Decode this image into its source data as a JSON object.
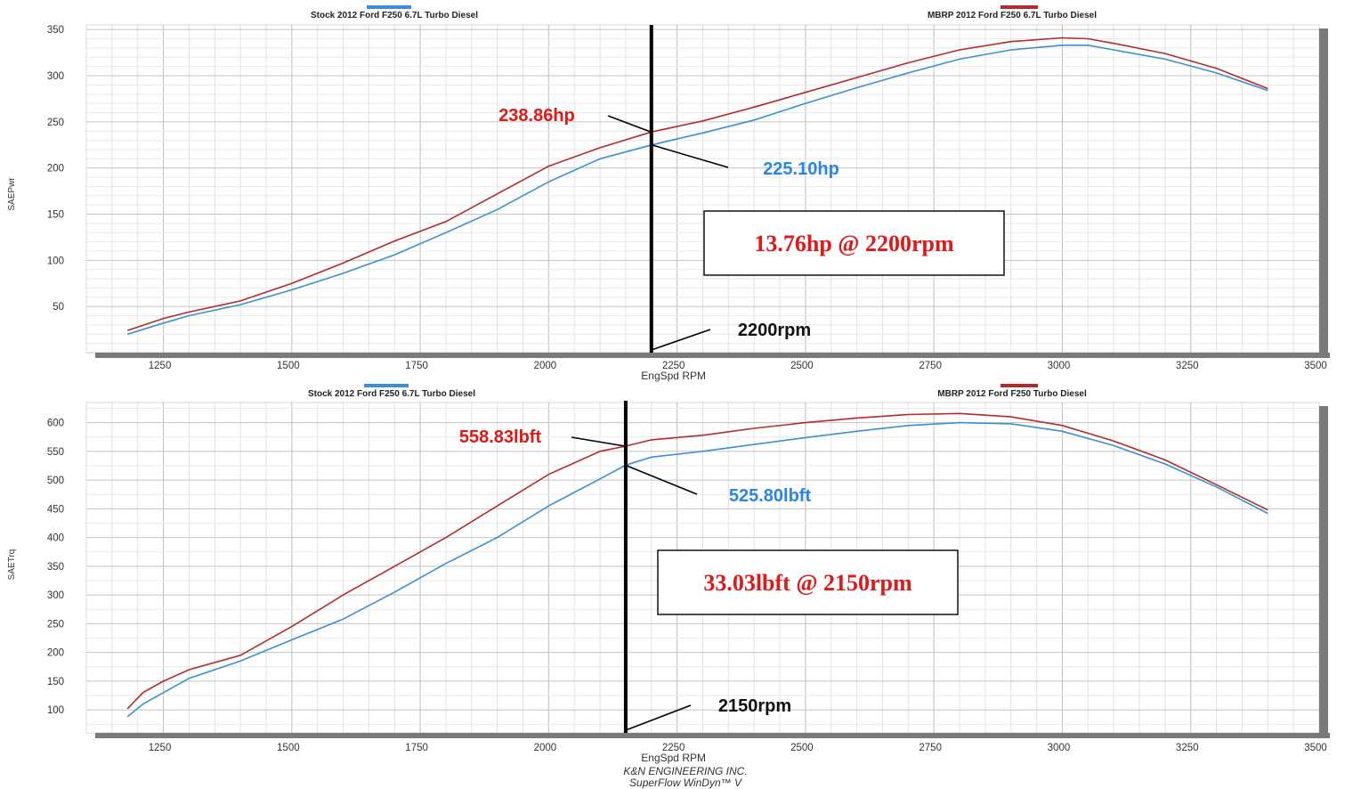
{
  "footer": {
    "line1": "K&N ENGINEERING INC.",
    "line2": "SuperFlow WinDyn™ V"
  },
  "colors": {
    "stock": "#3a8fd8",
    "mbrp": "#b52a2a",
    "grid": "#cfcfcf",
    "frame": "#8a8a8a",
    "annotation_red": "#e01818",
    "annotation_blue": "#2b86e0"
  },
  "chart_data": [
    {
      "type": "line",
      "legend": [
        "Stock 2012 Ford F250 6.7L Turbo Diesel",
        "MBRP 2012 Ford F250 6.7L Turbo Diesel"
      ],
      "xlabel": "EngSpd RPM",
      "ylabel": "SAEPwr",
      "xlim": [
        1100,
        3500
      ],
      "ylim": [
        0,
        355
      ],
      "x_ticks": [
        1250,
        1500,
        1750,
        2000,
        2250,
        2500,
        2750,
        3000,
        3250,
        3500
      ],
      "y_ticks": [
        50,
        100,
        150,
        200,
        250,
        300,
        350
      ],
      "grid": true,
      "series": [
        {
          "name": "Stock 2012 Ford F250 6.7L Turbo Diesel",
          "color": "#3a8fd8",
          "x": [
            1180,
            1250,
            1300,
            1400,
            1500,
            1600,
            1700,
            1800,
            1900,
            2000,
            2100,
            2200,
            2300,
            2400,
            2500,
            2600,
            2700,
            2800,
            2900,
            3000,
            3050,
            3100,
            3200,
            3300,
            3400
          ],
          "y": [
            20,
            32,
            40,
            52,
            68,
            86,
            106,
            130,
            155,
            185,
            210,
            225,
            238,
            252,
            270,
            287,
            303,
            318,
            328,
            333,
            333,
            328,
            318,
            303,
            284
          ]
        },
        {
          "name": "MBRP 2012 Ford F250 6.7L Turbo Diesel",
          "color": "#b52a2a",
          "x": [
            1180,
            1250,
            1300,
            1400,
            1500,
            1600,
            1700,
            1800,
            1900,
            2000,
            2100,
            2200,
            2300,
            2400,
            2500,
            2600,
            2700,
            2800,
            2900,
            3000,
            3050,
            3100,
            3200,
            3300,
            3400
          ],
          "y": [
            24,
            37,
            44,
            56,
            75,
            97,
            121,
            142,
            172,
            202,
            222,
            239,
            251,
            266,
            282,
            298,
            314,
            328,
            337,
            341,
            340,
            335,
            324,
            308,
            286
          ]
        }
      ],
      "annotations": {
        "high_label": "238.86hp",
        "low_label": "225.10hp",
        "box_label": "13.76hp @ 2200rpm",
        "rpm_label": "2200rpm",
        "marker_rpm": 2200,
        "high_value": 238.86,
        "low_value": 225.1
      }
    },
    {
      "type": "line",
      "legend": [
        "Stock 2012 Ford F250 6.7L Turbo Diesel",
        "MBRP 2012 Ford F250 Turbo Diesel"
      ],
      "xlabel": "EngSpd RPM",
      "ylabel": "SAETrq",
      "xlim": [
        1100,
        3500
      ],
      "ylim": [
        60,
        635
      ],
      "x_ticks": [
        1250,
        1500,
        1750,
        2000,
        2250,
        2500,
        2750,
        3000,
        3250,
        3500
      ],
      "y_ticks": [
        100,
        150,
        200,
        250,
        300,
        350,
        400,
        450,
        500,
        550,
        600
      ],
      "grid": true,
      "series": [
        {
          "name": "Stock 2012 Ford F250 6.7L Turbo Diesel",
          "color": "#3a8fd8",
          "x": [
            1180,
            1210,
            1250,
            1300,
            1400,
            1500,
            1600,
            1700,
            1800,
            1900,
            2000,
            2100,
            2150,
            2200,
            2300,
            2400,
            2500,
            2600,
            2700,
            2800,
            2900,
            3000,
            3100,
            3200,
            3300,
            3400
          ],
          "y": [
            88,
            110,
            130,
            155,
            185,
            222,
            258,
            305,
            355,
            400,
            455,
            502,
            526,
            540,
            550,
            562,
            574,
            585,
            595,
            600,
            598,
            585,
            560,
            528,
            488,
            442
          ]
        },
        {
          "name": "MBRP 2012 Ford F250 Turbo Diesel",
          "color": "#b52a2a",
          "x": [
            1180,
            1210,
            1250,
            1300,
            1400,
            1500,
            1600,
            1700,
            1800,
            1900,
            2000,
            2100,
            2150,
            2200,
            2300,
            2400,
            2500,
            2600,
            2700,
            2800,
            2900,
            3000,
            3100,
            3200,
            3300,
            3400
          ],
          "y": [
            102,
            130,
            150,
            170,
            195,
            245,
            300,
            350,
            400,
            455,
            510,
            550,
            559,
            570,
            578,
            590,
            600,
            608,
            614,
            616,
            610,
            595,
            568,
            535,
            492,
            448
          ]
        }
      ],
      "annotations": {
        "high_label": "558.83lbft",
        "low_label": "525.80lbft",
        "box_label": "33.03lbft @ 2150rpm",
        "rpm_label": "2150rpm",
        "marker_rpm": 2150,
        "high_value": 558.83,
        "low_value": 525.8
      }
    }
  ]
}
